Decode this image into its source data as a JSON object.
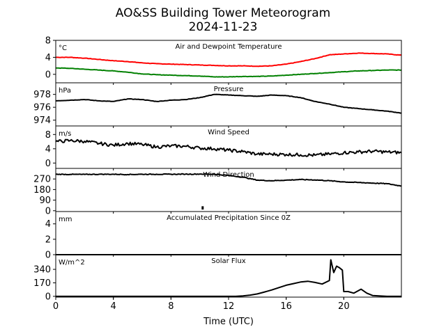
{
  "figure": {
    "title_line1": "AO&SS Building Tower Meteorogram",
    "title_line2": "2024-11-23",
    "xlabel": "Time (UTC)"
  },
  "chart_data": [
    {
      "type": "line",
      "title": "Air and Dewpoint Temperature",
      "unit_label": "°C",
      "ylim": [
        -2,
        8
      ],
      "yticks": [
        0,
        4,
        8
      ],
      "xlim": [
        0,
        24
      ],
      "xticks": [
        0,
        4,
        8,
        12,
        16,
        20
      ],
      "series": [
        {
          "color": "#ff0000",
          "x": [
            0,
            1,
            2,
            3,
            4,
            5,
            6,
            7,
            8,
            9,
            10,
            11,
            12,
            13,
            14,
            15,
            16,
            17,
            18,
            19,
            20,
            21,
            22,
            23,
            24
          ],
          "y": [
            4,
            4,
            3.8,
            3.5,
            3.2,
            3,
            2.7,
            2.5,
            2.4,
            2.3,
            2.2,
            2.1,
            2,
            2,
            1.9,
            2,
            2.4,
            3,
            3.7,
            4.6,
            4.8,
            5,
            4.9,
            4.8,
            4.5
          ]
        },
        {
          "color": "#008000",
          "x": [
            0,
            1,
            2,
            3,
            4,
            5,
            6,
            7,
            8,
            9,
            10,
            11,
            12,
            13,
            14,
            15,
            16,
            17,
            18,
            19,
            20,
            21,
            22,
            23,
            24
          ],
          "y": [
            1.5,
            1.4,
            1.2,
            1,
            0.8,
            0.5,
            0.1,
            -0.1,
            -0.2,
            -0.3,
            -0.4,
            -0.6,
            -0.6,
            -0.5,
            -0.5,
            -0.4,
            -0.2,
            0,
            0.2,
            0.4,
            0.6,
            0.8,
            0.9,
            1,
            1
          ]
        }
      ]
    },
    {
      "type": "line",
      "title": "Pressure",
      "unit_label": "hPa",
      "ylim": [
        973.1,
        979.8
      ],
      "yticks": [
        974,
        976,
        978
      ],
      "xlim": [
        0,
        24
      ],
      "series": [
        {
          "color": "#000000",
          "x": [
            0,
            1,
            2,
            3,
            4,
            5,
            6,
            7,
            8,
            9,
            10,
            11,
            12,
            13,
            14,
            15,
            16,
            17,
            18,
            19,
            20,
            21,
            22,
            23,
            24
          ],
          "y": [
            977,
            977.1,
            977.2,
            977,
            976.9,
            977.3,
            977.2,
            976.9,
            977.1,
            977.2,
            977.5,
            978,
            977.9,
            977.8,
            977.7,
            977.9,
            977.8,
            977.5,
            976.9,
            976.5,
            976,
            975.8,
            975.6,
            975.4,
            975.1
          ]
        }
      ]
    },
    {
      "type": "line",
      "title": "Wind Speed",
      "unit_label": "m/s",
      "ylim": [
        -1.5,
        10.4
      ],
      "yticks": [
        0,
        4,
        8
      ],
      "xlim": [
        0,
        24
      ],
      "series": [
        {
          "color": "#000000",
          "x": [
            0,
            1,
            2,
            3,
            4,
            5,
            6,
            7,
            8,
            9,
            10,
            11,
            12,
            13,
            14,
            15,
            16,
            17,
            18,
            19,
            20,
            21,
            22,
            23,
            24
          ],
          "y": [
            6,
            6.3,
            6.1,
            5.5,
            5,
            5.5,
            5.2,
            4.5,
            4.8,
            4.7,
            4.2,
            4,
            3.6,
            3.2,
            2.5,
            2.5,
            2.4,
            2.3,
            2.2,
            2.5,
            2.9,
            3.1,
            3.3,
            3.1,
            2.9
          ]
        }
      ]
    },
    {
      "type": "line",
      "title": "Wind Direction",
      "unit_label": "",
      "ylim": [
        -7,
        360
      ],
      "yticks": [
        0,
        90,
        180,
        270
      ],
      "xlim": [
        0,
        24
      ],
      "series": [
        {
          "color": "#000000",
          "x": [
            0,
            1,
            2,
            3,
            4,
            5,
            6,
            7,
            8,
            9,
            10,
            11,
            12,
            13,
            14,
            15,
            16,
            17,
            18,
            19,
            20,
            21,
            22,
            23,
            24
          ],
          "y": [
            310,
            309,
            309,
            310,
            310,
            308,
            310,
            310,
            310,
            311,
            312,
            310,
            300,
            285,
            260,
            255,
            260,
            265,
            262,
            255,
            245,
            240,
            235,
            230,
            210
          ]
        }
      ],
      "spikes": [
        {
          "x": 10.2,
          "y": [
            10,
            38
          ]
        }
      ]
    },
    {
      "type": "line",
      "title": "Accumulated Precipitation Since 0Z",
      "unit_label": "mm",
      "ylim": [
        0,
        5.6
      ],
      "yticks": [
        0,
        2,
        4
      ],
      "xlim": [
        0,
        24
      ],
      "series": [
        {
          "color": "#000000",
          "x": [
            0,
            24
          ],
          "y": [
            0,
            0
          ]
        }
      ]
    },
    {
      "type": "line",
      "title": "Solar Flux",
      "unit_label": "W/m^2",
      "ylim": [
        -10,
        525
      ],
      "yticks": [
        0,
        170,
        340
      ],
      "xlim": [
        0,
        24
      ],
      "series": [
        {
          "color": "#000000",
          "x": [
            0,
            12.5,
            13,
            13.5,
            14,
            14.5,
            15,
            15.5,
            16,
            16.5,
            17,
            17.5,
            18,
            18.5,
            19,
            19.1,
            19.3,
            19.5,
            19.7,
            19.9,
            20,
            20.3,
            20.7,
            21.2,
            21.6,
            22,
            23,
            24
          ],
          "y": [
            0,
            0,
            5,
            15,
            30,
            55,
            80,
            110,
            140,
            160,
            180,
            190,
            175,
            155,
            200,
            460,
            300,
            380,
            360,
            330,
            60,
            60,
            40,
            90,
            40,
            10,
            0,
            0
          ]
        }
      ]
    }
  ]
}
